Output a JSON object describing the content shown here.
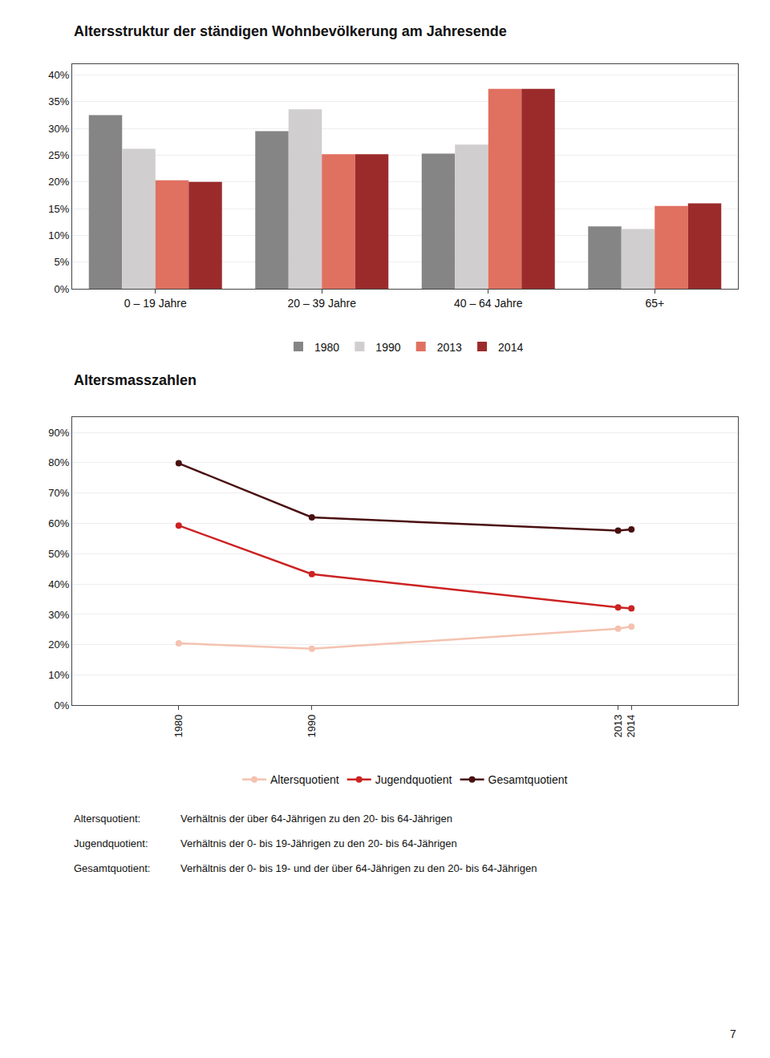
{
  "chart_data": [
    {
      "type": "bar",
      "title": "Altersstruktur der ständigen Wohnbevölkerung am Jahresende",
      "categories": [
        "0 – 19 Jahre",
        "20 – 39 Jahre",
        "40 – 64 Jahre",
        "65+"
      ],
      "series": [
        {
          "name": "1980",
          "color": "#858585",
          "values": [
            0.325,
            0.295,
            0.253,
            0.117
          ]
        },
        {
          "name": "1990",
          "color": "#d0cece",
          "values": [
            0.262,
            0.336,
            0.27,
            0.112
          ]
        },
        {
          "name": "2013",
          "color": "#e07060",
          "values": [
            0.203,
            0.252,
            0.374,
            0.155
          ]
        },
        {
          "name": "2014",
          "color": "#9b2b2b",
          "values": [
            0.2,
            0.252,
            0.374,
            0.16
          ]
        }
      ],
      "ylim": [
        0,
        0.42
      ],
      "yticks": [
        {
          "value": 0.0,
          "label": "0%"
        },
        {
          "value": 0.05,
          "label": "5%"
        },
        {
          "value": 0.1,
          "label": "10%"
        },
        {
          "value": 0.15,
          "label": "15%"
        },
        {
          "value": 0.2,
          "label": "20%"
        },
        {
          "value": 0.25,
          "label": "25%"
        },
        {
          "value": 0.3,
          "label": "30%"
        },
        {
          "value": 0.35,
          "label": "35%"
        },
        {
          "value": 0.4,
          "label": "40%"
        }
      ],
      "grid": true,
      "legend": "bottom"
    },
    {
      "type": "line",
      "title": "Altersmasszahlen",
      "x": [
        1980,
        1990,
        2013,
        2014
      ],
      "series": [
        {
          "name": "Gesamtquotient",
          "color": "#4a1010",
          "values": [
            0.798,
            0.62,
            0.576,
            0.58
          ]
        },
        {
          "name": "Jugendquotient",
          "color": "#cc2222",
          "values": [
            0.593,
            0.433,
            0.323,
            0.32
          ]
        },
        {
          "name": "Altersquotient",
          "color": "#f4c2b0",
          "values": [
            0.205,
            0.187,
            0.253,
            0.26
          ]
        }
      ],
      "xlim": [
        1972,
        2022
      ],
      "xticks": [
        1980,
        1990,
        2013,
        2014
      ],
      "ylim": [
        0,
        0.95
      ],
      "yticks": [
        {
          "value": 0.0,
          "label": "0%"
        },
        {
          "value": 0.1,
          "label": "10%"
        },
        {
          "value": 0.2,
          "label": "20%"
        },
        {
          "value": 0.3,
          "label": "30%"
        },
        {
          "value": 0.4,
          "label": "40%"
        },
        {
          "value": 0.5,
          "label": "50%"
        },
        {
          "value": 0.6,
          "label": "60%"
        },
        {
          "value": 0.7,
          "label": "70%"
        },
        {
          "value": 0.8,
          "label": "80%"
        },
        {
          "value": 0.9,
          "label": "90%"
        }
      ],
      "grid": true,
      "legend": "bottom",
      "marker": "circle",
      "line_style": "solid",
      "annotations": [
        [
          "Altersquotient:",
          "Verhältnis der über 64-Jährigen zu den 20- bis 64-Jährigen"
        ],
        [
          "Jugendquotient:",
          "Verhältnis der 0- bis 19-Jährigen zu den 20- bis 64-Jährigen"
        ],
        [
          "Gesamtquotient:",
          "Verhältnis der 0- bis 19- und der über 64-Jährigen zu den 20- bis 64-Jährigen"
        ],
        [
          "7"
        ]
      ]
    }
  ]
}
